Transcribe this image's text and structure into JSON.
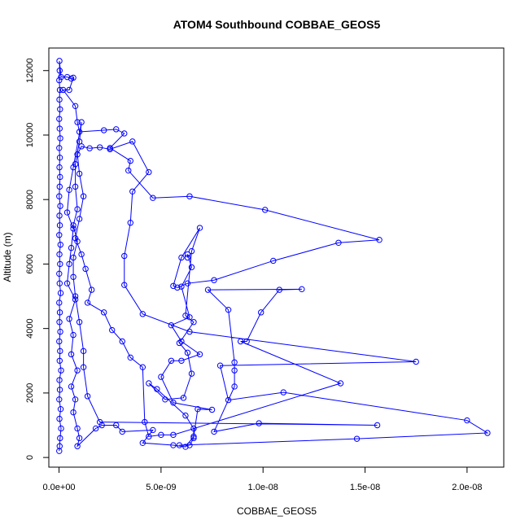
{
  "chart_data": {
    "type": "line",
    "title": "ATOM4 Southbound COBBAE_GEOS5",
    "xlabel": "COBBAE_GEOS5",
    "ylabel": "Altitude (m)",
    "xlim": [
      -5e-10,
      2.18e-08
    ],
    "ylim": [
      -300,
      12700
    ],
    "x_ticks": [
      0,
      5e-09,
      1e-08,
      1.5e-08,
      2e-08
    ],
    "x_tick_labels": [
      "0.0e+00",
      "5.0e-09",
      "1.0e-08",
      "1.5e-08",
      "2.0e-08"
    ],
    "y_ticks": [
      0,
      2000,
      4000,
      6000,
      8000,
      10000,
      12000
    ],
    "y_tick_labels": [
      "0",
      "2000",
      "4000",
      "6000",
      "8000",
      "10000",
      "12000"
    ],
    "grid": false,
    "series": [
      {
        "color": "#0000ff",
        "points": [
          [
            1e-11,
            200
          ],
          [
            3e-11,
            350
          ],
          [
            5e-11,
            600
          ],
          [
            1e-10,
            900
          ],
          [
            2e-11,
            1200
          ],
          [
            8e-11,
            1500
          ],
          [
            1e-11,
            1800
          ],
          [
            4e-11,
            2100
          ],
          [
            2e-11,
            2400
          ],
          [
            1e-10,
            2700
          ],
          [
            3e-11,
            3000
          ],
          [
            5e-11,
            3300
          ],
          [
            1e-11,
            3600
          ],
          [
            6e-11,
            3900
          ],
          [
            2e-11,
            4200
          ],
          [
            4e-11,
            4500
          ],
          [
            1e-11,
            4800
          ],
          [
            8e-11,
            5100
          ],
          [
            3e-11,
            5400
          ],
          [
            1e-11,
            5700
          ],
          [
            5e-11,
            6000
          ],
          [
            2e-11,
            6300
          ],
          [
            7e-11,
            6600
          ],
          [
            1e-11,
            6900
          ],
          [
            4e-11,
            7200
          ],
          [
            2e-11,
            7500
          ],
          [
            6e-11,
            7800
          ],
          [
            1e-11,
            8100
          ],
          [
            3e-11,
            8400
          ],
          [
            5e-11,
            8700
          ],
          [
            2e-11,
            9000
          ],
          [
            4e-11,
            9300
          ],
          [
            1e-11,
            9600
          ],
          [
            6e-11,
            9900
          ],
          [
            3e-11,
            10200
          ],
          [
            1e-11,
            10500
          ],
          [
            5e-11,
            10800
          ],
          [
            2e-11,
            11100
          ],
          [
            4e-11,
            11400
          ],
          [
            1e-11,
            11700
          ],
          [
            3e-11,
            12000
          ],
          [
            2e-11,
            12300
          ],
          [
            1e-10,
            11800
          ],
          [
            4e-10,
            11800
          ],
          [
            6e-10,
            11750
          ],
          [
            7e-10,
            11780
          ],
          [
            5e-10,
            11400
          ],
          [
            2e-10,
            11400
          ],
          [
            8e-10,
            10900
          ],
          [
            9e-10,
            10400
          ],
          [
            1e-09,
            10100
          ],
          [
            2.2e-09,
            10150
          ],
          [
            2.8e-09,
            10180
          ],
          [
            3.2e-09,
            10050
          ],
          [
            2.5e-09,
            9600
          ],
          [
            3.5e-09,
            9200
          ],
          [
            3.4e-09,
            8900
          ],
          [
            4.6e-09,
            8050
          ],
          [
            6.4e-09,
            8100
          ],
          [
            1.01e-08,
            7680
          ],
          [
            1.57e-08,
            6750
          ],
          [
            1.37e-08,
            6660
          ],
          [
            1.05e-08,
            6100
          ],
          [
            7.6e-09,
            5500
          ],
          [
            6.3e-09,
            5400
          ],
          [
            5.8e-09,
            5270
          ],
          [
            5.6e-09,
            5320
          ],
          [
            6e-09,
            6200
          ],
          [
            6.9e-09,
            7120
          ],
          [
            6.5e-09,
            6400
          ],
          [
            6.2e-09,
            4400
          ],
          [
            6.6e-09,
            4200
          ],
          [
            5.9e-09,
            3550
          ],
          [
            6.3e-09,
            3250
          ],
          [
            6.5e-09,
            2600
          ],
          [
            6.1e-09,
            1850
          ],
          [
            5.2e-09,
            1800
          ],
          [
            4.4e-09,
            2300
          ],
          [
            4.8e-09,
            2120
          ],
          [
            6.2e-09,
            1300
          ],
          [
            6.6e-09,
            900
          ],
          [
            6.6e-09,
            600
          ],
          [
            6.4e-09,
            380
          ],
          [
            5.9e-09,
            380
          ],
          [
            1.46e-08,
            580
          ],
          [
            2.1e-08,
            760
          ],
          [
            2e-08,
            1150
          ],
          [
            1.1e-08,
            2020
          ],
          [
            8.3e-09,
            1780
          ],
          [
            7.9e-09,
            2850
          ],
          [
            1.75e-08,
            2970
          ],
          [
            6.4e-09,
            3900
          ],
          [
            4.1e-09,
            4450
          ],
          [
            3.2e-09,
            5350
          ],
          [
            3.2e-09,
            6250
          ],
          [
            3.5e-09,
            7280
          ],
          [
            3.6e-09,
            8250
          ],
          [
            4.4e-09,
            8850
          ],
          [
            3.6e-09,
            9800
          ],
          [
            2.5e-09,
            9560
          ],
          [
            2e-09,
            9620
          ],
          [
            1.5e-09,
            9590
          ],
          [
            1.1e-09,
            9650
          ],
          [
            9e-10,
            9400
          ],
          [
            1e-09,
            8800
          ],
          [
            1.2e-09,
            8100
          ],
          [
            1e-09,
            7400
          ],
          [
            8e-10,
            6800
          ],
          [
            1.1e-09,
            6300
          ],
          [
            1.3e-09,
            5850
          ],
          [
            1.6e-09,
            5200
          ],
          [
            1.4e-09,
            4800
          ],
          [
            2.2e-09,
            4500
          ],
          [
            2.6e-09,
            3950
          ],
          [
            3.1e-09,
            3600
          ],
          [
            3.5e-09,
            3100
          ],
          [
            4.1e-09,
            2800
          ],
          [
            4.2e-09,
            1100
          ],
          [
            4.4e-09,
            650
          ],
          [
            5e-09,
            700
          ],
          [
            5.6e-09,
            700
          ],
          [
            1.38e-08,
            2300
          ],
          [
            8.9e-09,
            3600
          ],
          [
            9.2e-09,
            3600
          ],
          [
            9.9e-09,
            4500
          ],
          [
            1.08e-08,
            5200
          ],
          [
            1.19e-08,
            5220
          ],
          [
            7.3e-09,
            5200
          ],
          [
            8.3e-09,
            4580
          ],
          [
            8.6e-09,
            2950
          ],
          [
            8.6e-09,
            2700
          ],
          [
            8.6e-09,
            2200
          ],
          [
            7.6e-09,
            800
          ],
          [
            9.8e-09,
            1060
          ],
          [
            1.56e-08,
            1000
          ],
          [
            2e-09,
            1100
          ],
          [
            1.4e-09,
            1900
          ],
          [
            1.2e-09,
            2800
          ],
          [
            1.2e-09,
            3300
          ],
          [
            1e-09,
            4200
          ],
          [
            8e-10,
            5000
          ],
          [
            7e-10,
            5600
          ],
          [
            7e-10,
            6200
          ],
          [
            9e-10,
            6700
          ],
          [
            7e-10,
            7200
          ],
          [
            9e-10,
            7700
          ],
          [
            8e-10,
            8400
          ],
          [
            8e-10,
            9100
          ],
          [
            1e-09,
            9800
          ],
          [
            1.1e-09,
            10400
          ],
          [
            7e-10,
            9000
          ],
          [
            5e-10,
            8300
          ],
          [
            4e-10,
            7600
          ],
          [
            7e-10,
            7100
          ],
          [
            6e-10,
            6500
          ],
          [
            5e-10,
            6000
          ],
          [
            4e-10,
            5400
          ],
          [
            8e-10,
            4900
          ],
          [
            5e-10,
            4300
          ],
          [
            7e-10,
            3800
          ],
          [
            6e-10,
            3200
          ],
          [
            9e-10,
            2700
          ],
          [
            6e-10,
            2200
          ],
          [
            8e-10,
            1800
          ],
          [
            7e-10,
            1400
          ],
          [
            9e-10,
            900
          ],
          [
            1e-09,
            600
          ],
          [
            9e-10,
            350
          ],
          [
            1.8e-09,
            900
          ],
          [
            2.1e-09,
            1000
          ],
          [
            2.8e-09,
            1000
          ],
          [
            3.1e-09,
            800
          ],
          [
            4.6e-09,
            850
          ],
          [
            4.1e-09,
            450
          ],
          [
            5.6e-09,
            380
          ],
          [
            6.2e-09,
            330
          ],
          [
            6.6e-09,
            650
          ],
          [
            6.8e-09,
            1500
          ],
          [
            7.5e-09,
            1480
          ],
          [
            5.6e-09,
            1700
          ],
          [
            5e-09,
            2500
          ],
          [
            5.5e-09,
            3000
          ],
          [
            6e-09,
            3000
          ],
          [
            6.9e-09,
            3200
          ],
          [
            6e-09,
            3600
          ],
          [
            5.5e-09,
            4100
          ],
          [
            6.4e-09,
            4350
          ],
          [
            6e-09,
            5300
          ],
          [
            6.5e-09,
            5900
          ],
          [
            6.3e-09,
            6300
          ],
          [
            6.3e-09,
            6200
          ]
        ]
      }
    ]
  }
}
